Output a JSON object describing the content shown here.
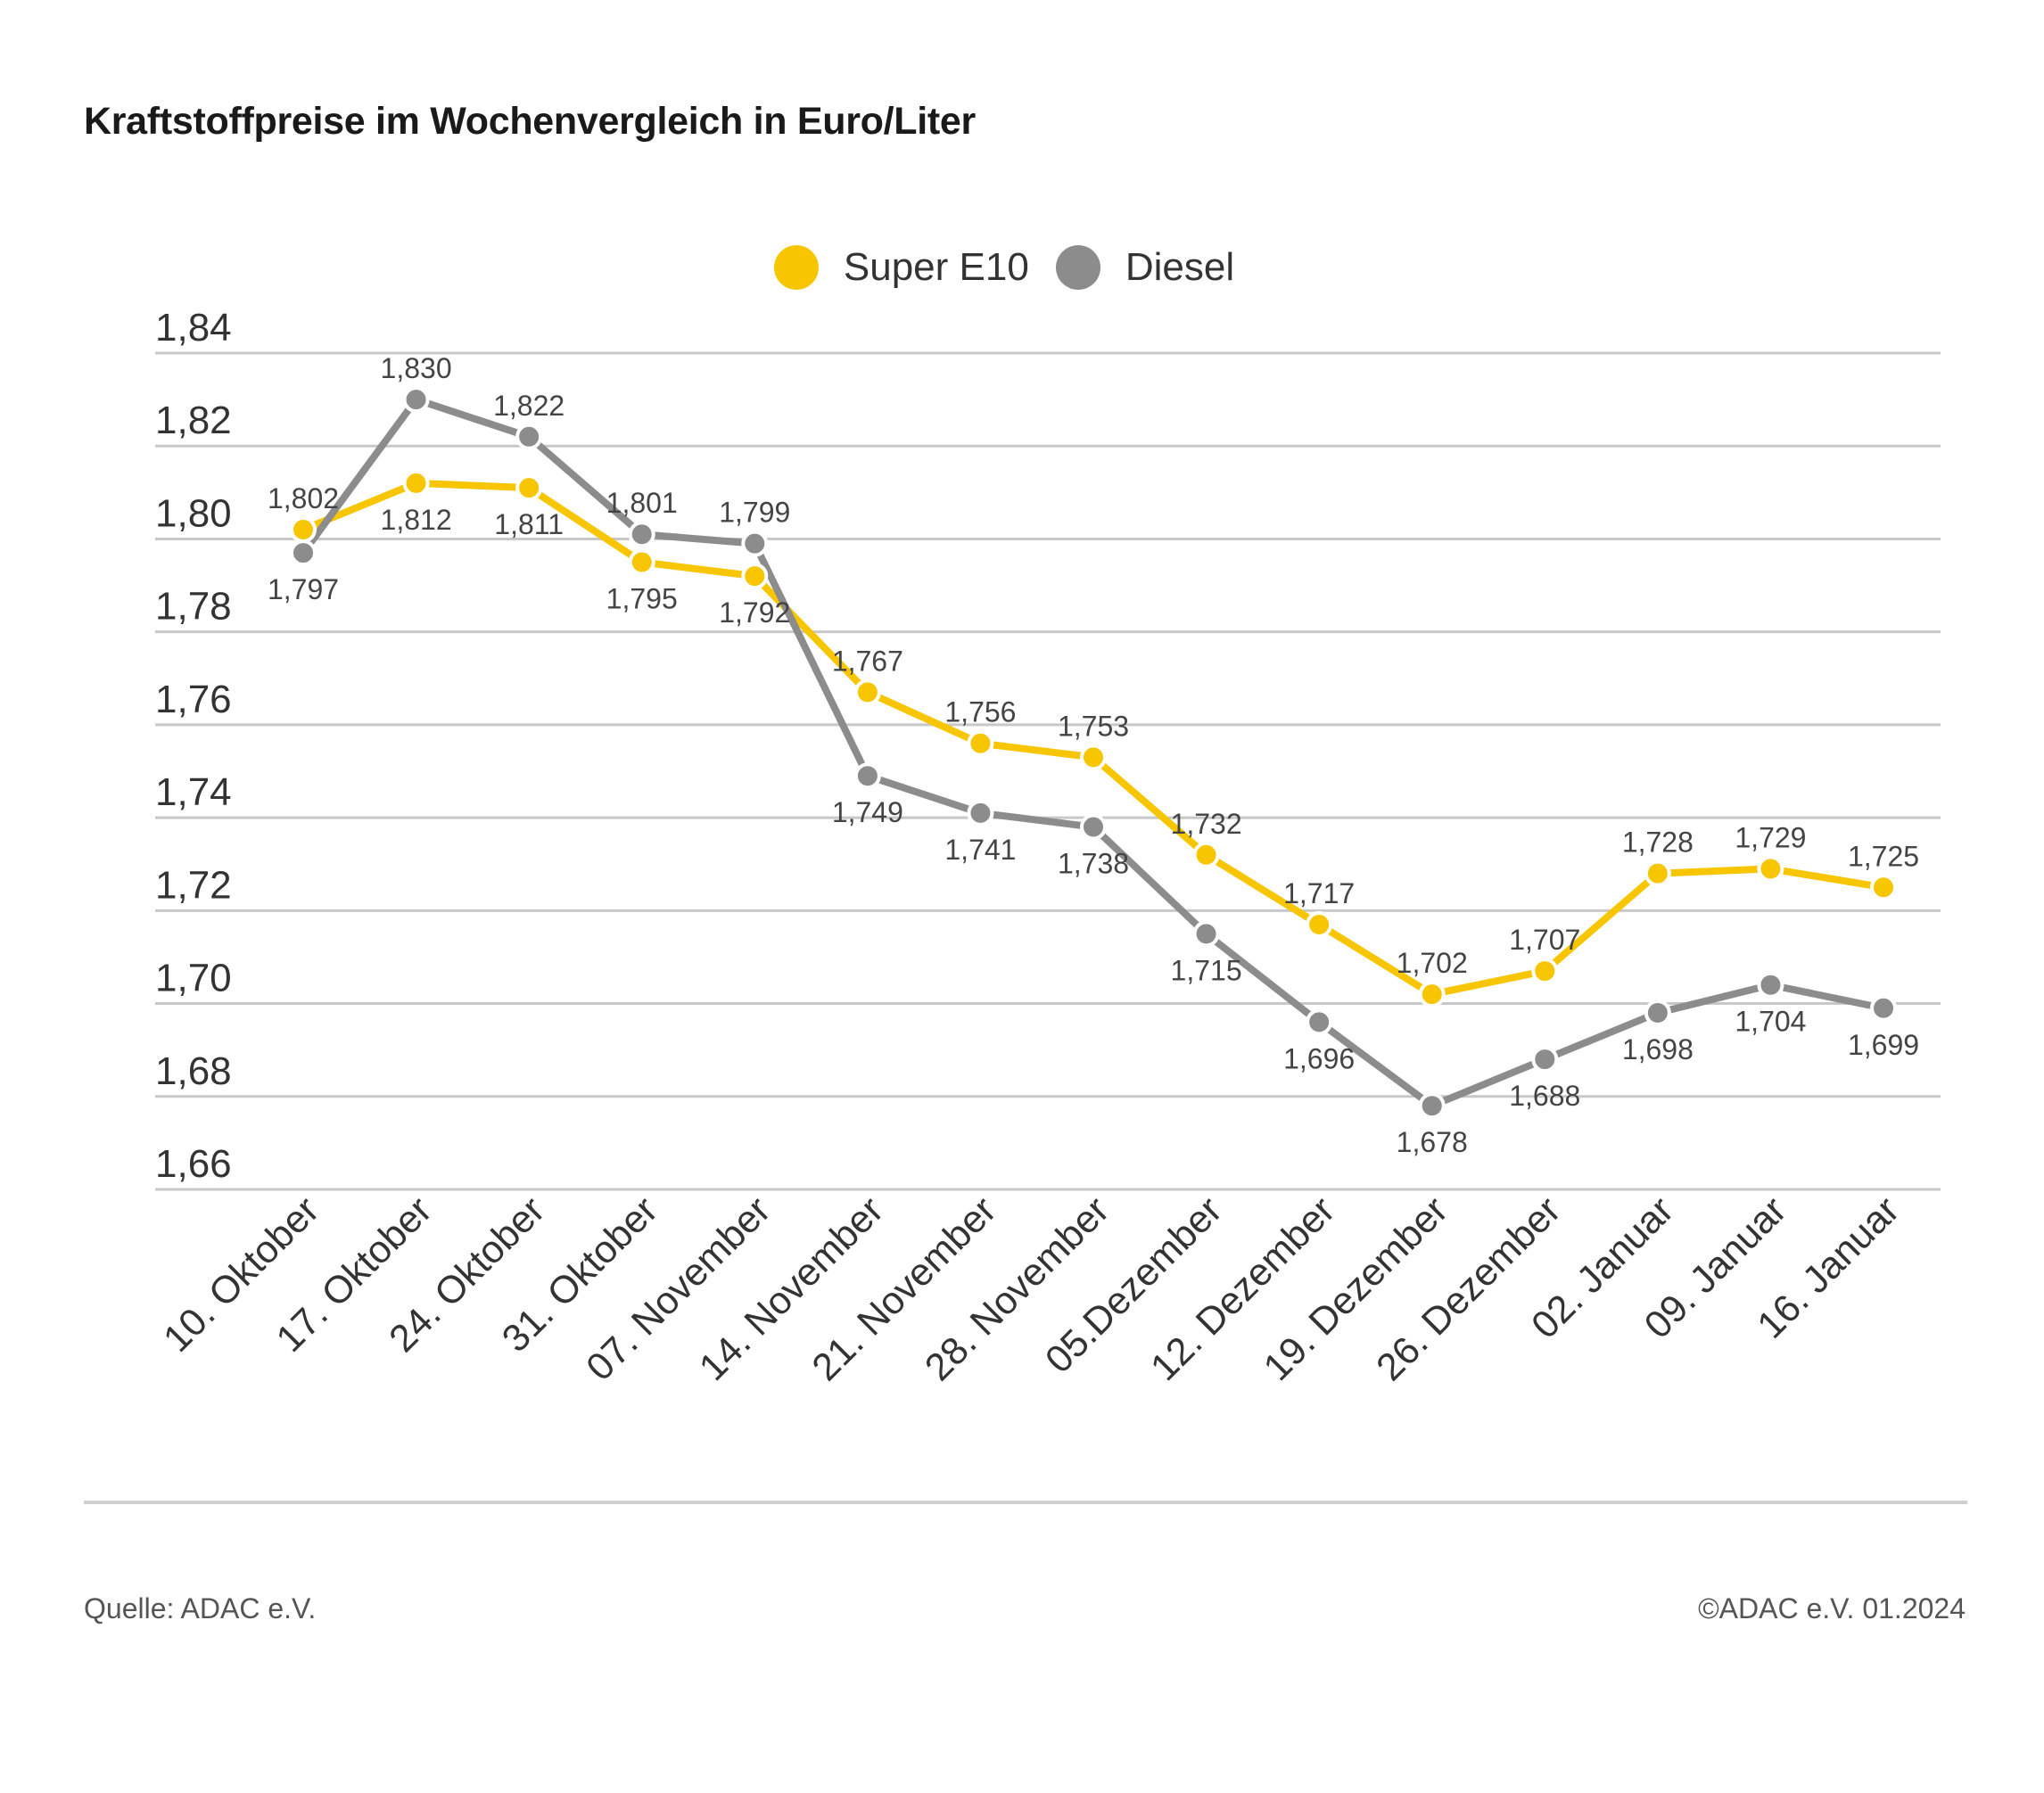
{
  "header": {
    "title": "Kraftstoffpreise im Wochenvergleich in Euro/Liter"
  },
  "footer": {
    "source": "Quelle: ADAC e.V.",
    "copyright": "©ADAC e.V. 01.2024"
  },
  "colors": {
    "super": "#f7c600",
    "diesel": "#8c8c8c",
    "grid": "#c8c8c8"
  },
  "chart_data": {
    "type": "line",
    "title": "Kraftstoffpreise im Wochenvergleich in Euro/Liter",
    "categories": [
      "10. Oktober",
      "17. Oktober",
      "24. Oktober",
      "31. Oktober",
      "07. November",
      "14. November",
      "21. November",
      "28. November",
      "05.Dezember",
      "12. Dezember",
      "19. Dezember",
      "26. Dezember",
      "02. Januar",
      "09. Januar",
      "16. Januar"
    ],
    "series": [
      {
        "name": "Super E10",
        "color": "#f7c600",
        "values": [
          1.802,
          1.812,
          1.811,
          1.795,
          1.792,
          1.767,
          1.756,
          1.753,
          1.732,
          1.717,
          1.702,
          1.707,
          1.728,
          1.729,
          1.725
        ],
        "labels": [
          "1,802",
          "1,812",
          "1,811",
          "1,795",
          "1,792",
          "1,767",
          "1,756",
          "1,753",
          "1,732",
          "1,717",
          "1,702",
          "1,707",
          "1,728",
          "1,729",
          "1,725"
        ]
      },
      {
        "name": "Diesel",
        "color": "#8c8c8c",
        "values": [
          1.797,
          1.83,
          1.822,
          1.801,
          1.799,
          1.749,
          1.741,
          1.738,
          1.715,
          1.696,
          1.678,
          1.688,
          1.698,
          1.704,
          1.699
        ],
        "labels": [
          "1,797",
          "1,830",
          "1,822",
          "1,801",
          "1,799",
          "1,749",
          "1,741",
          "1,738",
          "1,715",
          "1,696",
          "1,678",
          "1,688",
          "1,698",
          "1,704",
          "1,699"
        ]
      }
    ],
    "yticks": [
      "1,84",
      "1,82",
      "1,80",
      "1,78",
      "1,76",
      "1,74",
      "1,72",
      "1,70",
      "1,68",
      "1,66"
    ],
    "ylim": [
      1.66,
      1.84
    ],
    "grid": true,
    "legend_position": "top-center"
  }
}
